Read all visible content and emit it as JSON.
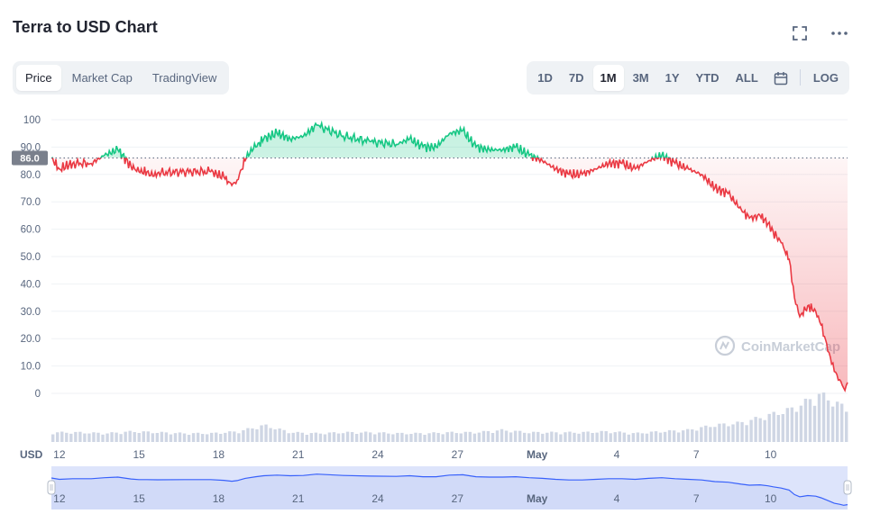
{
  "header": {
    "title": "Terra to USD Chart",
    "fullscreen_icon": "expand-icon",
    "more_icon": "more-horizontal-icon"
  },
  "tabs": [
    {
      "label": "Price",
      "active": true
    },
    {
      "label": "Market Cap",
      "active": false
    },
    {
      "label": "TradingView",
      "active": false
    }
  ],
  "ranges": [
    {
      "label": "1D",
      "active": false
    },
    {
      "label": "7D",
      "active": false
    },
    {
      "label": "1M",
      "active": true
    },
    {
      "label": "3M",
      "active": false
    },
    {
      "label": "1Y",
      "active": false
    },
    {
      "label": "YTD",
      "active": false
    },
    {
      "label": "ALL",
      "active": false
    }
  ],
  "calendar_icon": "calendar-icon",
  "log_label": "LOG",
  "watermark": "CoinMarketCap",
  "currency_label": "USD",
  "colors": {
    "up": "#16c784",
    "down": "#ea3943",
    "grid": "#eff2f5",
    "axis_text": "#58667e",
    "volume": "#cfd6e4",
    "navigator_line": "#3861fb",
    "navigator_fill": "#dde4fb"
  },
  "chart_data": {
    "type": "line",
    "title": "Terra to USD Chart",
    "ylabel": "USD",
    "ylim": [
      0,
      100
    ],
    "y_ticks": [
      "100",
      "90.0",
      "80.0",
      "70.0",
      "60.0",
      "50.0",
      "40.0",
      "30.0",
      "20.0",
      "10.0",
      "0"
    ],
    "x_ticks": [
      "12",
      "15",
      "18",
      "21",
      "24",
      "27",
      "May",
      "4",
      "7",
      "10"
    ],
    "reference_price": 86.0,
    "reference_label": "86.0",
    "x_range": [
      0,
      30
    ],
    "grid": true,
    "series": [
      {
        "x": [
          0,
          0.3,
          0.8,
          1.5,
          2,
          2.5,
          3,
          3.3,
          3.6,
          4,
          5,
          6,
          6.5,
          6.8,
          7,
          7.3,
          7.7,
          8,
          8.5,
          9,
          9.5,
          10,
          11,
          12,
          13,
          13.5,
          14,
          14.5,
          15,
          15.5,
          16,
          16.5,
          17,
          17.5,
          18,
          18.5,
          19,
          19.5,
          20,
          20.5,
          21,
          21.5,
          22,
          22.5,
          23,
          23.5,
          24,
          24.5,
          25,
          25.5,
          26,
          26.3,
          26.7,
          27,
          27.2,
          27.5,
          27.8,
          28,
          28.2,
          28.5,
          28.8,
          29,
          29.3,
          29.5,
          29.7,
          29.85,
          30
        ],
        "values": [
          86,
          82,
          84,
          84,
          87,
          89,
          83,
          81,
          81,
          80.5,
          81,
          81,
          79,
          76,
          78,
          85,
          90,
          93,
          95,
          93,
          94,
          98,
          94,
          92,
          91,
          93,
          90,
          90,
          95,
          96,
          90,
          89,
          89,
          90,
          87,
          85,
          82,
          80,
          80,
          82,
          84,
          84,
          82,
          85,
          87,
          84,
          82,
          80,
          75,
          73,
          67,
          64,
          65,
          62,
          59,
          55,
          49,
          35,
          28,
          32,
          30,
          25,
          15,
          8,
          5,
          2,
          4
        ]
      }
    ],
    "volume_relative": [
      0.2,
      0.2,
      0.18,
      0.22,
      0.2,
      0.18,
      0.18,
      0.22,
      0.35,
      0.2,
      0.18,
      0.2,
      0.2,
      0.18,
      0.18,
      0.2,
      0.2,
      0.25,
      0.2,
      0.2,
      0.2,
      0.22,
      0.18,
      0.22,
      0.25,
      0.35,
      0.4,
      0.55,
      0.7,
      1.0,
      0.7
    ]
  }
}
